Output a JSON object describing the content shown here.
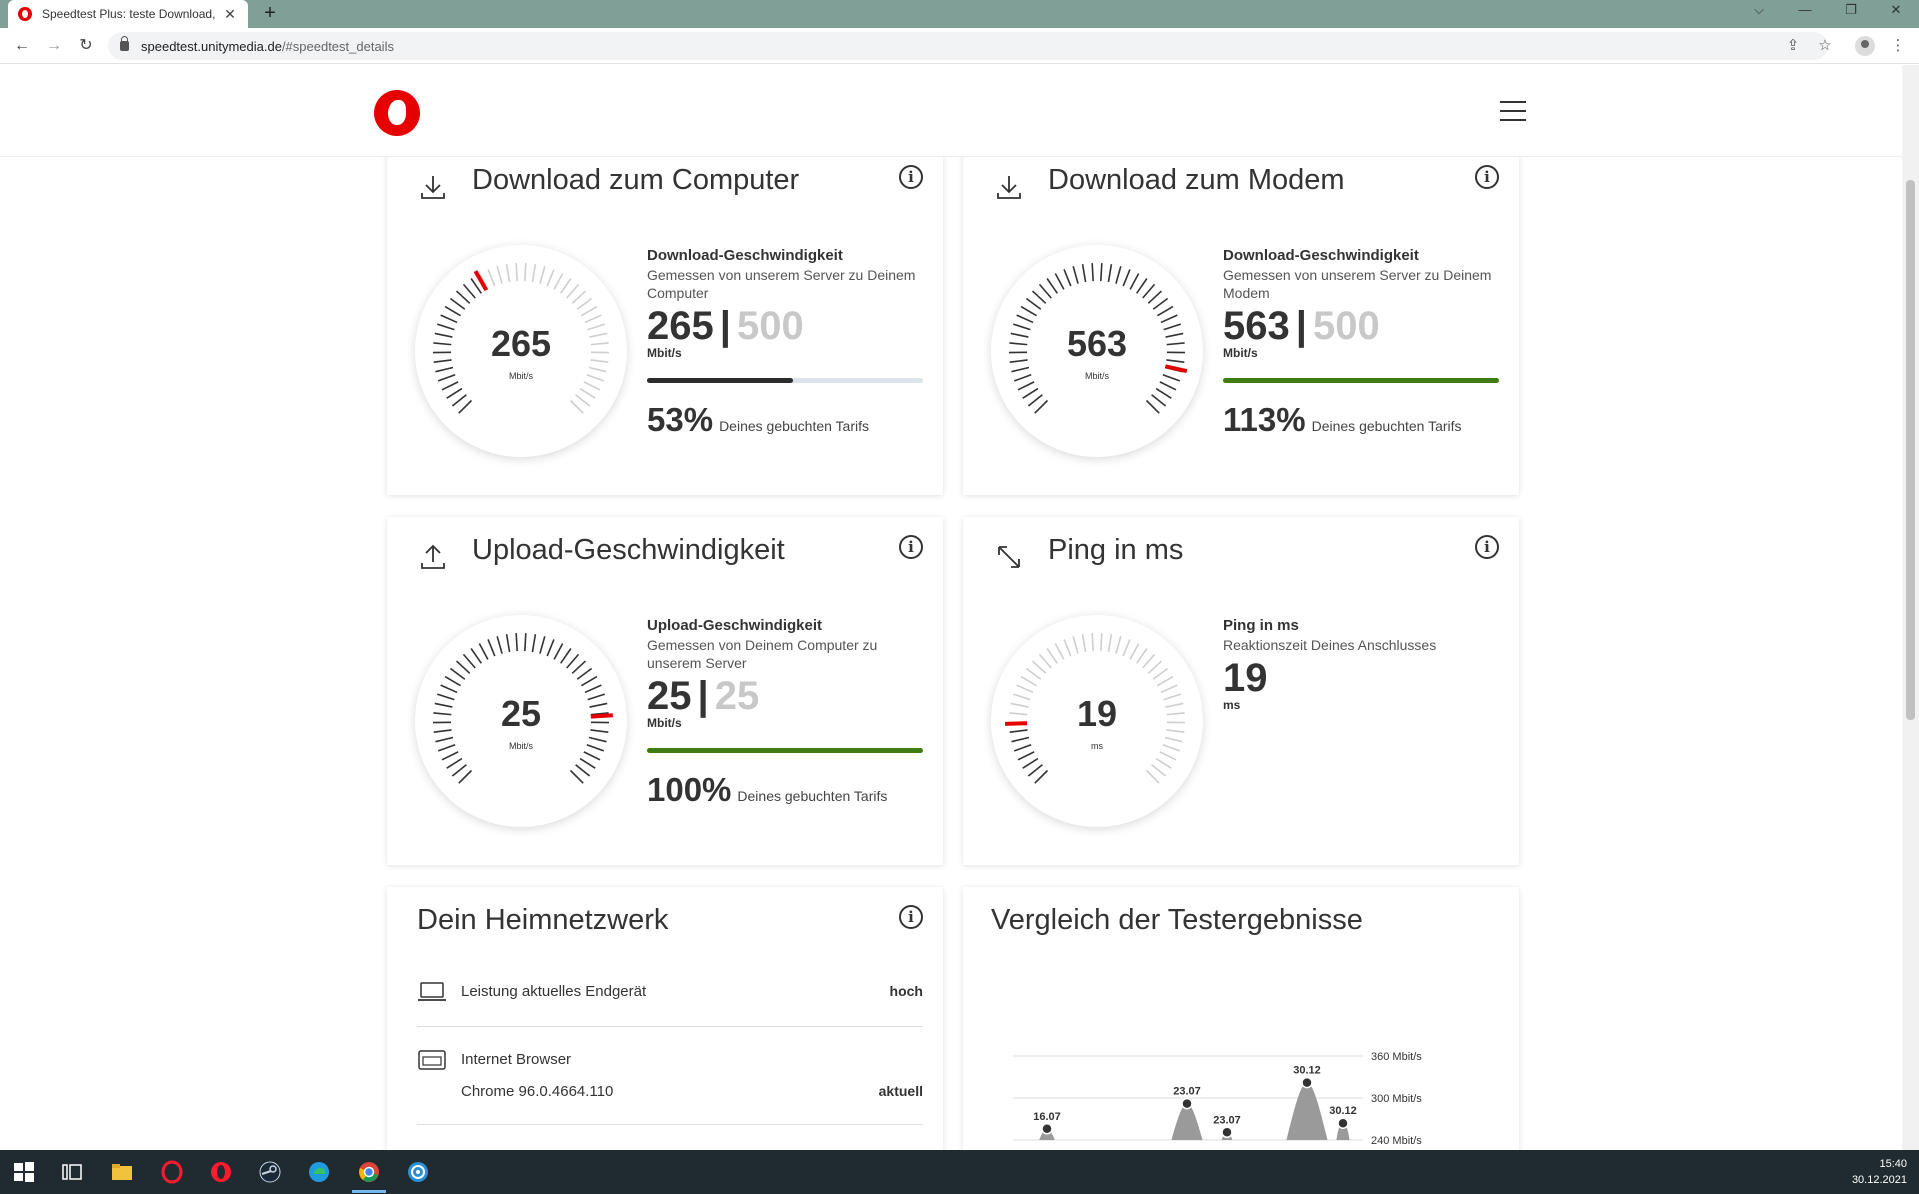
{
  "browser": {
    "tab_title": "Speedtest Plus: teste Download, ",
    "tab_close": "✕",
    "new_tab": "+",
    "url_host": "speedtest.unitymedia.de",
    "url_path": "/#speedtest_details",
    "back": "←",
    "forward": "→",
    "reload": "↻",
    "share": "⇪",
    "star": "☆",
    "menu": "⋮",
    "minimize": "—",
    "restore": "❐",
    "close": "✕",
    "tab_search": "⌵"
  },
  "cards": {
    "download_computer": {
      "title": "Download zum Computer",
      "gauge_value": "265",
      "gauge_unit": "Mbit/s",
      "label": "Download-Geschwindigkeit",
      "desc": "Gemessen von unserem Server zu Deinem Computer",
      "measured": "265",
      "separator": "|",
      "tarif": "500",
      "unit": "Mbit/s",
      "percent": "53%",
      "percent_text": "Deines gebuchten Tarifs",
      "fill_fraction": 0.53,
      "fill_color": "#2c2c2c"
    },
    "download_modem": {
      "title": "Download zum Modem",
      "gauge_value": "563",
      "gauge_unit": "Mbit/s",
      "label": "Download-Geschwindigkeit",
      "desc": "Gemessen von unserem Server zu Deinem Modem",
      "measured": "563",
      "separator": "|",
      "tarif": "500",
      "unit": "Mbit/s",
      "percent": "113%",
      "percent_text": "Deines gebuchten Tarifs",
      "fill_fraction": 1.0,
      "fill_color": "#3f7d12"
    },
    "upload": {
      "title": "Upload-Geschwindigkeit",
      "gauge_value": "25",
      "gauge_unit": "Mbit/s",
      "label": "Upload-Geschwindigkeit",
      "desc": "Gemessen von Deinem Computer zu unserem Server",
      "measured": "25",
      "separator": "|",
      "tarif": "25",
      "unit": "Mbit/s",
      "percent": "100%",
      "percent_text": "Deines gebuchten Tarifs",
      "fill_fraction": 1.0,
      "fill_color": "#3f7d12"
    },
    "ping": {
      "title": "Ping in ms",
      "gauge_value": "19",
      "gauge_unit": "ms",
      "label": "Ping in ms",
      "desc": "Reaktionszeit Deines Anschlusses",
      "measured": "19",
      "unit": "ms"
    },
    "heimnetz": {
      "title": "Dein Heimnetzwerk",
      "rows": [
        {
          "label": "Leistung aktuelles Endgerät",
          "value": "hoch"
        },
        {
          "label": "Internet Browser",
          "sublabel": "Chrome 96.0.4664.110",
          "value": "aktuell"
        }
      ]
    },
    "vergleich": {
      "title": "Vergleich der Testergebnisse"
    }
  },
  "gauges": {
    "download_computer": {
      "needle_fraction": 0.39,
      "active_fraction": 0.39
    },
    "download_modem": {
      "needle_fraction": 0.88,
      "active_fraction": 1.0
    },
    "upload": {
      "needle_fraction": 0.82,
      "active_fraction": 1.0
    },
    "ping": {
      "needle_fraction": 0.16,
      "active_fraction": 0.16
    }
  },
  "info_glyph": "i",
  "chart_data": {
    "type": "area",
    "title": "Vergleich der Testergebnisse",
    "y_ticks": [
      "360 Mbit/s",
      "300 Mbit/s",
      "240 Mbit/s"
    ],
    "y_tick_values": [
      360,
      300,
      240
    ],
    "ylim": [
      240,
      360
    ],
    "points": [
      {
        "x": 1,
        "y": 256,
        "label": "16.07"
      },
      {
        "x": 2,
        "y": 292,
        "label": "23.07"
      },
      {
        "x": 3,
        "y": 251,
        "label": "23.07"
      },
      {
        "x": 4,
        "y": 322,
        "label": "30.12"
      },
      {
        "x": 5,
        "y": 264,
        "label": "30.12"
      }
    ],
    "grid": true,
    "fill_color": "#9a9a9a"
  },
  "taskbar": {
    "time": "15:40",
    "date": "30.12.2021"
  }
}
